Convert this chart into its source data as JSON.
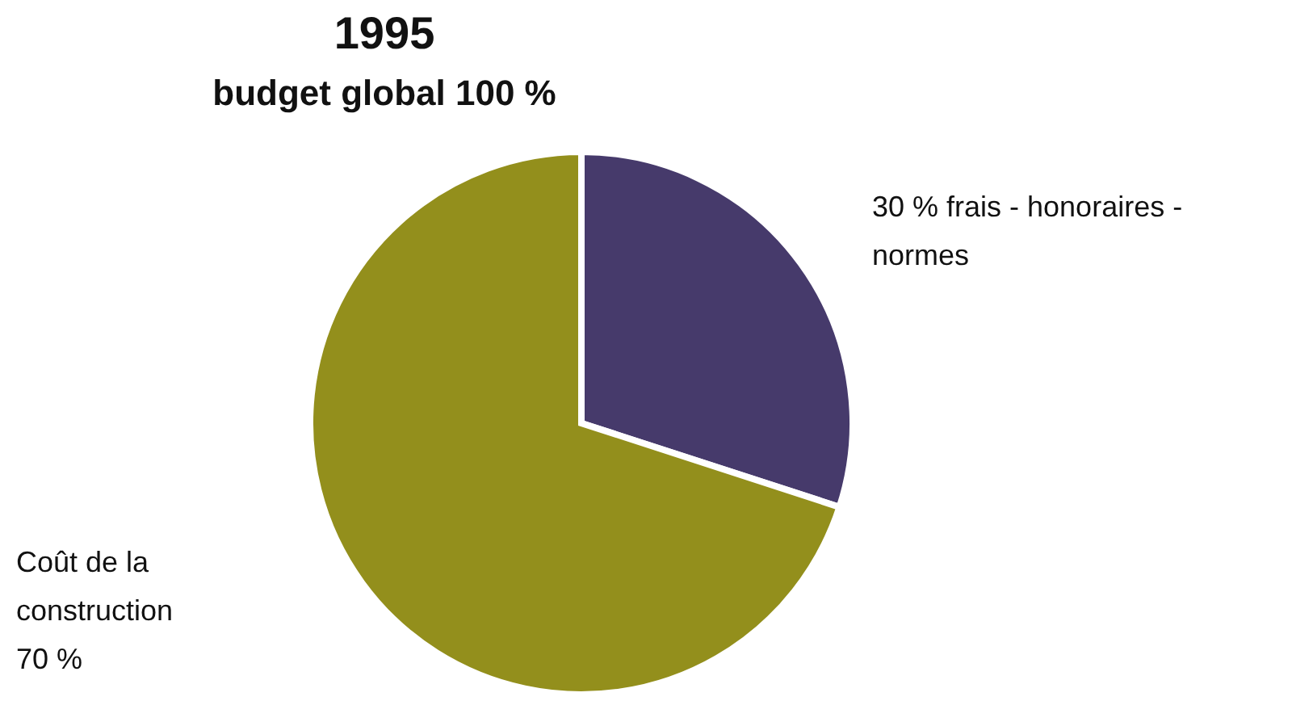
{
  "chart_data": {
    "type": "pie",
    "title": "1995",
    "subtitle": "budget global 100 %",
    "categories": [
      "30 % frais - honoraires - normes",
      "Coût de la construction 70 %"
    ],
    "values": [
      30,
      70
    ],
    "colors": [
      "#463a6b",
      "#938f1c"
    ]
  }
}
